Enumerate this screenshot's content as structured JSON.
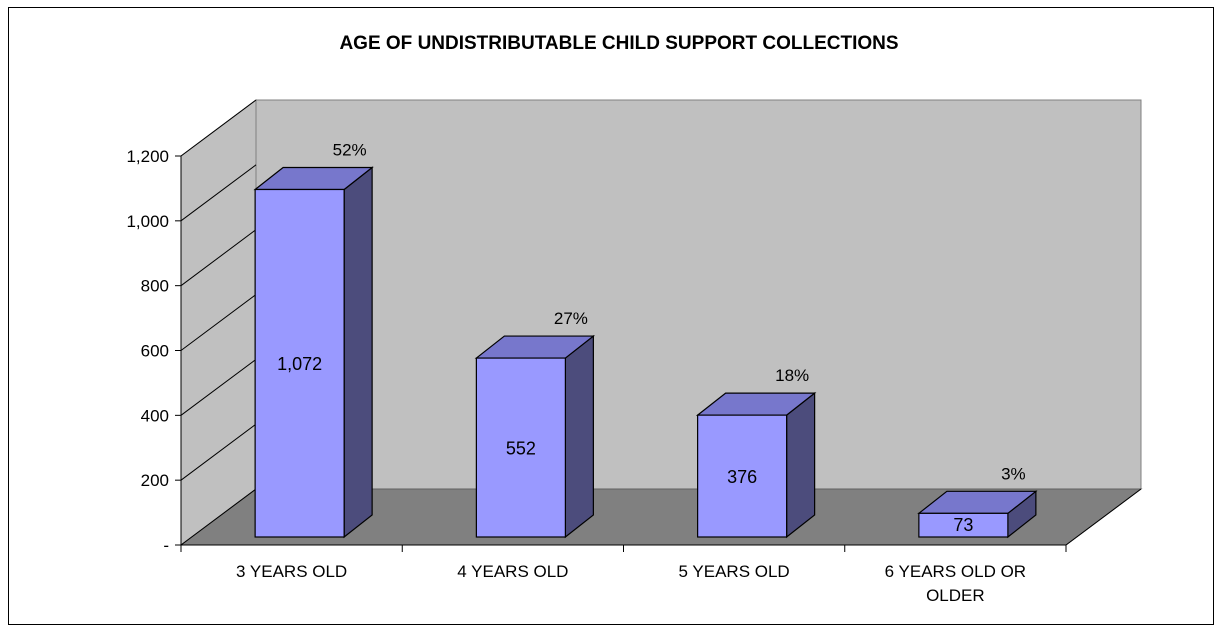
{
  "chart_data": {
    "type": "bar",
    "title": "AGE OF UNDISTRIBUTABLE CHILD SUPPORT COLLECTIONS",
    "categories": [
      "3 YEARS OLD",
      "4 YEARS OLD",
      "5 YEARS OLD",
      "6 YEARS OLD OR OLDER"
    ],
    "values": [
      1072,
      552,
      376,
      73
    ],
    "value_labels": [
      "1,072",
      "552",
      "376",
      "73"
    ],
    "percent_labels": [
      "52%",
      "27%",
      "18%",
      "3%"
    ],
    "ytick_labels": [
      "-",
      "200",
      "400",
      "600",
      "800",
      "1,000",
      "1,200"
    ],
    "ylim": [
      0,
      1200
    ],
    "xlabel": "",
    "ylabel": "",
    "grid": false,
    "legend": "none",
    "three_d": true,
    "colors": {
      "bar_front": "#9999ff",
      "bar_top": "#7777cc",
      "bar_side": "#4c4c7c",
      "back_wall": "#c0c0c0",
      "side_wall": "#c0c0c0",
      "floor": "#808080"
    }
  }
}
